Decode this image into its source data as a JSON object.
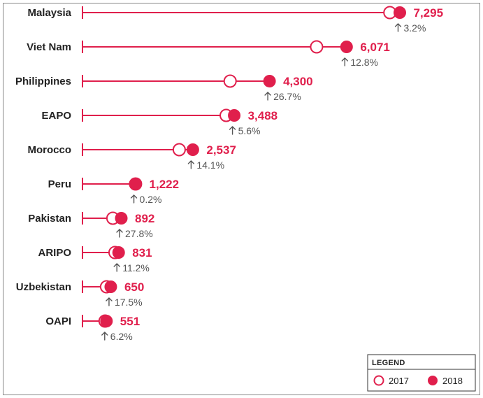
{
  "chart_data": {
    "type": "dumbbell",
    "categories": [
      "Malaysia",
      "Viet Nam",
      "Philippines",
      "EAPO",
      "Morocco",
      "Peru",
      "Pakistan",
      "ARIPO",
      "Uzbekistan",
      "OAPI"
    ],
    "series": [
      {
        "name": "2017",
        "values": [
          7066,
          5382,
          3394,
          3303,
          2224,
          1220,
          698,
          747,
          553,
          519
        ]
      },
      {
        "name": "2018",
        "values": [
          7295,
          6071,
          4300,
          3488,
          2537,
          1222,
          892,
          831,
          650,
          551
        ]
      }
    ],
    "value_labels": [
      "7,295",
      "6,071",
      "4,300",
      "3,488",
      "2,537",
      "1,222",
      "892",
      "831",
      "650",
      "551"
    ],
    "change_labels": [
      "3.2%",
      "12.8%",
      "26.7%",
      "5.6%",
      "14.1%",
      "0.2%",
      "27.8%",
      "11.2%",
      "17.5%",
      "6.2%"
    ],
    "change_direction": "up",
    "xlim": [
      0,
      7295
    ],
    "grid": false,
    "legend": {
      "title": "LEGEND",
      "placement": "bottom-right",
      "items": [
        {
          "label": "2017",
          "marker": "open-circle"
        },
        {
          "label": "2018",
          "marker": "filled-circle"
        }
      ]
    }
  },
  "colors": {
    "accent": "#e01f4c",
    "label": "#222222",
    "change_text": "#555555",
    "frame": "#8a8a8a"
  },
  "icons": {
    "change_arrow": "arrow-up-icon"
  }
}
